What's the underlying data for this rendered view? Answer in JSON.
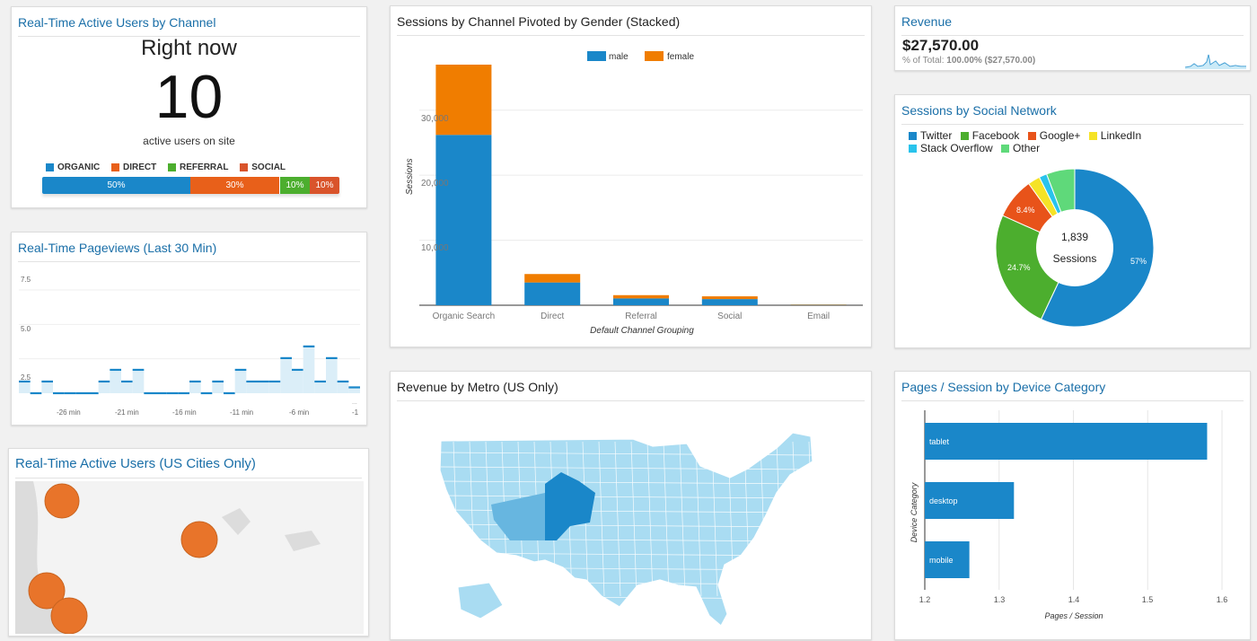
{
  "colors": {
    "blue": "#1a87c9",
    "orange": "#f07d00",
    "green": "#4cae2e",
    "red_orange": "#e8531a",
    "yellow": "#f5e326",
    "cyan": "#29c3ec",
    "light_green": "#5fd97a",
    "map_light": "#a9dcf2",
    "map_mid": "#67b6e0",
    "map_dark": "#1a87c9",
    "bubble": "#e8742a"
  },
  "active_users": {
    "title": "Real-Time Active Users by Channel",
    "heading": "Right now",
    "count": "10",
    "caption": "active users on site",
    "legend": [
      "ORGANIC",
      "DIRECT",
      "REFERRAL",
      "SOCIAL"
    ],
    "segments": [
      {
        "label": "50%",
        "value": 50
      },
      {
        "label": "30%",
        "value": 30
      },
      {
        "label": "10%",
        "value": 10
      },
      {
        "label": "10%",
        "value": 10
      }
    ]
  },
  "pageviews": {
    "title": "Real-Time Pageviews (Last 30 Min)",
    "y_ticks": [
      "7.5",
      "5.0",
      "2.5"
    ],
    "x_ticks": [
      "-26 min",
      "-21 min",
      "-16 min",
      "-11 min",
      "-6 min",
      "-1"
    ],
    "x_ellipsis": "..."
  },
  "sessions_gender": {
    "title": "Sessions by Channel Pivoted by Gender (Stacked)",
    "legend_male": "male",
    "legend_female": "female",
    "y_axis_title": "Sessions",
    "x_axis_title": "Default Channel Grouping",
    "y_ticks": [
      "30,000",
      "20,000",
      "10,000"
    ]
  },
  "revenue": {
    "title": "Revenue",
    "value": "$27,570.00",
    "pct_label": "% of Total:",
    "pct_value": "100.00% ($27,570.00)"
  },
  "social": {
    "title": "Sessions by Social Network",
    "legend": [
      "Twitter",
      "Facebook",
      "Google+",
      "LinkedIn",
      "Stack Overflow",
      "Other"
    ],
    "center_value": "1,839",
    "center_label": "Sessions",
    "slice_labels": [
      "57%",
      "24.7%",
      "8.4%"
    ]
  },
  "metro": {
    "title": "Revenue by Metro (US Only)"
  },
  "device": {
    "title": "Pages / Session by Device Category",
    "y_axis_title": "Device Category",
    "x_axis_title": "Pages / Session",
    "x_ticks": [
      "1.2",
      "1.3",
      "1.4",
      "1.5",
      "1.6"
    ]
  },
  "us_cities": {
    "title": "Real-Time Active Users (US Cities Only)"
  },
  "chart_data": [
    {
      "type": "bar",
      "title": "Sessions by Channel Pivoted by Gender (Stacked)",
      "categories": [
        "Organic Search",
        "Direct",
        "Referral",
        "Social",
        "Email"
      ],
      "series": [
        {
          "name": "male",
          "values": [
            26200,
            3500,
            1050,
            950,
            80
          ]
        },
        {
          "name": "female",
          "values": [
            10800,
            1300,
            500,
            420,
            40
          ]
        }
      ],
      "xlabel": "Default Channel Grouping",
      "ylabel": "Sessions",
      "ylim": [
        0,
        37000
      ]
    },
    {
      "type": "bar",
      "title": "Pages / Session by Device Category",
      "categories": [
        "tablet",
        "desktop",
        "mobile"
      ],
      "values": [
        1.58,
        1.32,
        1.26
      ],
      "xlabel": "Pages / Session",
      "ylabel": "Device Category",
      "xlim": [
        1.2,
        1.6
      ]
    },
    {
      "type": "pie",
      "title": "Sessions by Social Network",
      "categories": [
        "Twitter",
        "Facebook",
        "Google+",
        "LinkedIn",
        "Stack Overflow",
        "Other"
      ],
      "values": [
        57,
        24.7,
        8.4,
        2.5,
        1.6,
        5.8
      ]
    },
    {
      "type": "line",
      "title": "Real-Time Pageviews (Last 30 Min)",
      "values": [
        1,
        0,
        1,
        0,
        0,
        0,
        0,
        1,
        2,
        1,
        2,
        0,
        0,
        0,
        0,
        1,
        0,
        1,
        0,
        2,
        1,
        1,
        1,
        3,
        2,
        4,
        1,
        3,
        1,
        0.5
      ],
      "ylim": [
        0,
        7.5
      ]
    }
  ]
}
